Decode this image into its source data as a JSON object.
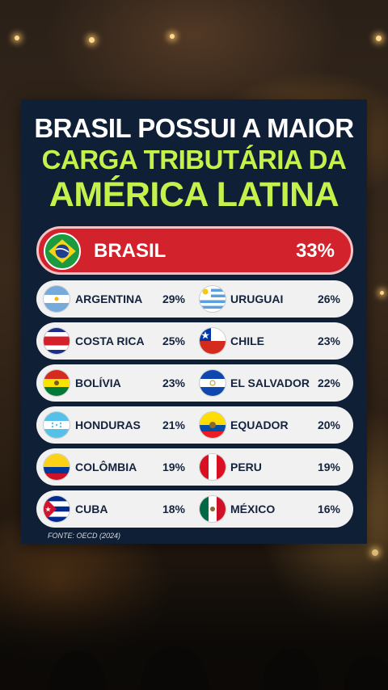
{
  "headline": {
    "line1": "BRASIL POSSUI A MAIOR",
    "line2": "CARGA TRIBUTÁRIA DA",
    "line3": "AMÉRICA LATINA"
  },
  "highlight": {
    "country": "BRASIL",
    "value": "33%",
    "flag": "brazil-flag-icon"
  },
  "rows": [
    {
      "left": {
        "country": "ARGENTINA",
        "value": "29%"
      },
      "right": {
        "country": "URUGUAI",
        "value": "26%"
      }
    },
    {
      "left": {
        "country": "COSTA RICA",
        "value": "25%"
      },
      "right": {
        "country": "CHILE",
        "value": "23%"
      }
    },
    {
      "left": {
        "country": "BOLÍVIA",
        "value": "23%"
      },
      "right": {
        "country": "EL SALVADOR",
        "value": "22%"
      }
    },
    {
      "left": {
        "country": "HONDURAS",
        "value": "21%"
      },
      "right": {
        "country": "EQUADOR",
        "value": "20%"
      }
    },
    {
      "left": {
        "country": "COLÔMBIA",
        "value": "19%"
      },
      "right": {
        "country": "PERU",
        "value": "19%"
      }
    },
    {
      "left": {
        "country": "CUBA",
        "value": "18%"
      },
      "right": {
        "country": "MÉXICO",
        "value": "16%"
      }
    }
  ],
  "source": "FONTE: OECD (2024)",
  "colors": {
    "card": "#0f1f36",
    "accent": "#c6f04a",
    "highlight": "#d2222c",
    "row": "#f1f1f1"
  }
}
